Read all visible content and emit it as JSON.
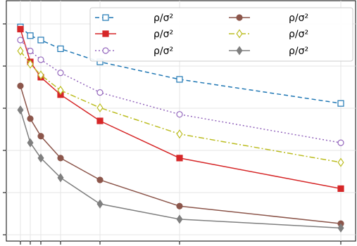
{
  "chart_data": {
    "type": "line",
    "x": [
      0,
      1,
      2,
      4,
      8,
      16,
      32
    ],
    "ylim": [
      -0.05,
      1.05
    ],
    "grid": true,
    "legend_placement": "top-right",
    "series": [
      {
        "name": "ρ/σ²",
        "color": "#1f77b4",
        "dash": "6,4",
        "marker": "square-open",
        "values": [
          0.93,
          0.89,
          0.87,
          0.83,
          0.77,
          0.69,
          0.58
        ]
      },
      {
        "name": "ρ/σ²",
        "color": "#d62728",
        "dash": "",
        "marker": "square",
        "values": [
          0.92,
          0.77,
          0.7,
          0.62,
          0.5,
          0.33,
          0.19
        ]
      },
      {
        "name": "ρ/σ²",
        "color": "#9467bd",
        "dash": "2,3",
        "marker": "circle-open",
        "values": [
          0.87,
          0.82,
          0.78,
          0.72,
          0.63,
          0.53,
          0.4
        ]
      },
      {
        "name": "ρ/σ²",
        "color": "#8c564b",
        "dash": "",
        "marker": "circle",
        "values": [
          0.66,
          0.51,
          0.43,
          0.33,
          0.23,
          0.11,
          0.03
        ]
      },
      {
        "name": "ρ/σ²",
        "color": "#bcbd22",
        "dash": "8,3,2,3",
        "marker": "diamond-open",
        "values": [
          0.82,
          0.76,
          0.71,
          0.64,
          0.56,
          0.44,
          0.31
        ]
      },
      {
        "name": "ρ/σ²",
        "color": "#7f7f7f",
        "dash": "",
        "marker": "diamond",
        "values": [
          0.55,
          0.4,
          0.33,
          0.24,
          0.12,
          0.05,
          0.01
        ]
      }
    ]
  }
}
